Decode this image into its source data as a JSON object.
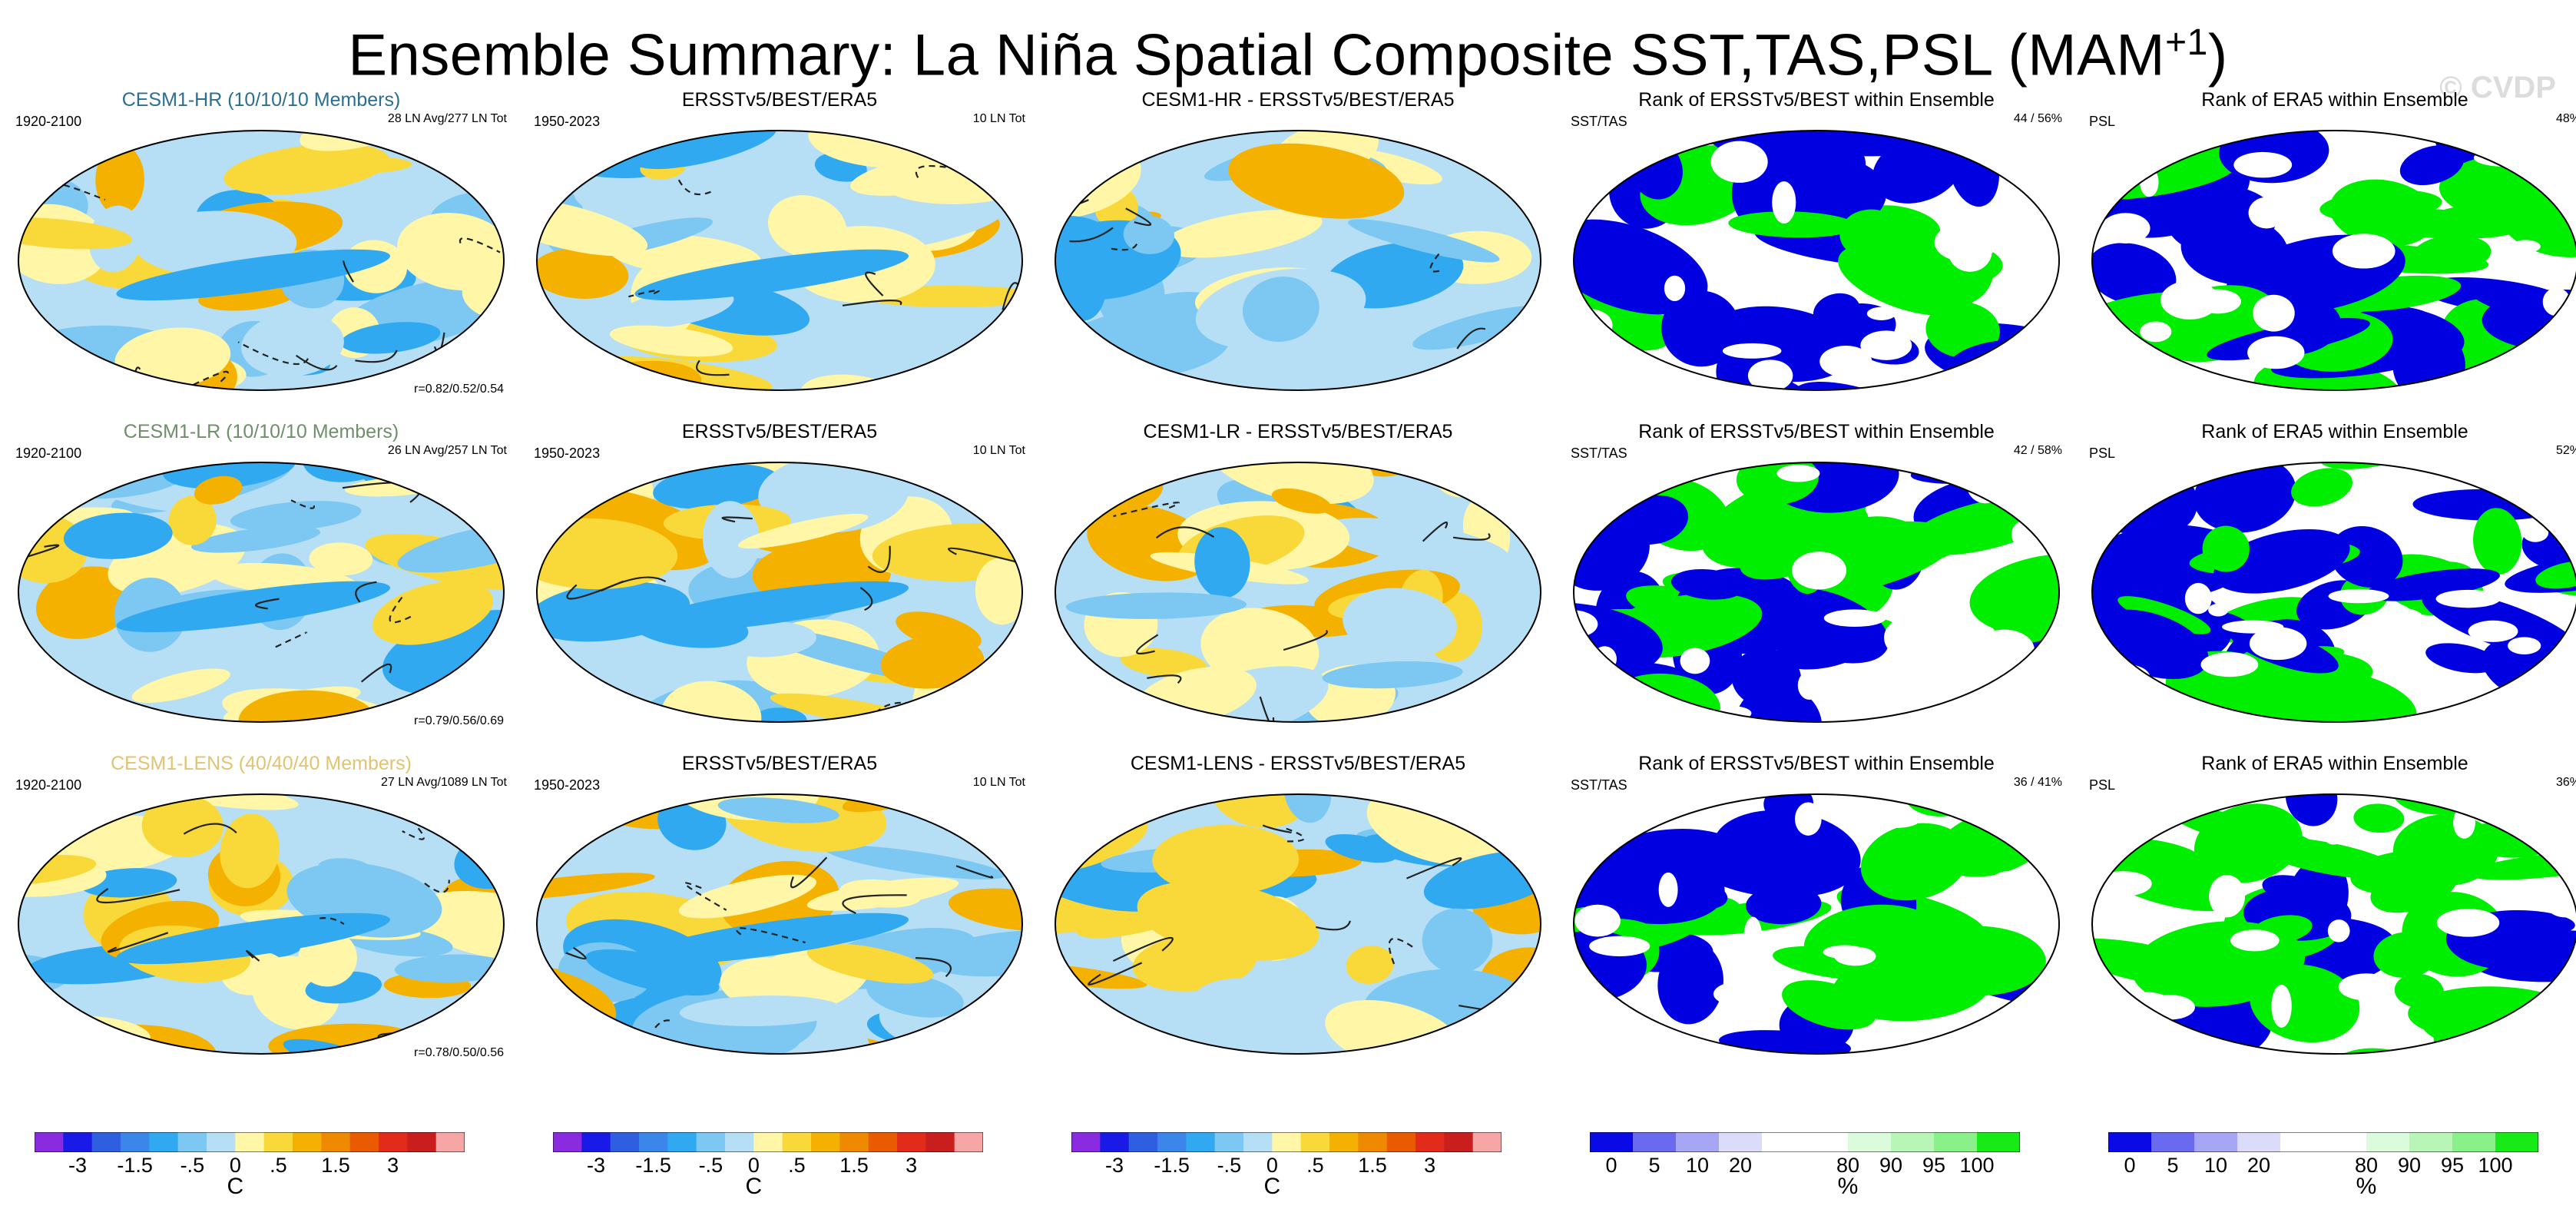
{
  "header": {
    "title": "Ensemble Summary: La Niña Spatial Composite SST,TAS,PSL (MAM",
    "title_sup": "+1",
    "title_end": ")",
    "watermark": "© CVDP"
  },
  "colors": {
    "title_hr": "#2a6f92",
    "title_lr": "#6e8f6a",
    "title_lens": "#e0c472",
    "blue": "#0000e0",
    "green": "#00ef00"
  },
  "panels": [
    {
      "title": "CESM1-HR (10/10/10 Members)",
      "left": "1920-2100",
      "right": "28 LN Avg/277 LN Tot",
      "corr": "r=0.82/0.52/0.54",
      "kind": "model",
      "tcolor": "title_hr"
    },
    {
      "title": "ERSSTv5/BEST/ERA5",
      "left": "1950-2023",
      "right": "10 LN Tot",
      "corr": "",
      "kind": "obs"
    },
    {
      "title": "CESM1-HR - ERSSTv5/BEST/ERA5",
      "left": "",
      "right": "",
      "corr": "",
      "kind": "diff"
    },
    {
      "title": "Rank of ERSSTv5/BEST within Ensemble",
      "left": "SST/TAS",
      "right": "44 /  56%",
      "corr": "",
      "kind": "rank"
    },
    {
      "title": "Rank of ERA5 within Ensemble",
      "left": "PSL",
      "right": "48%",
      "corr": "",
      "kind": "rank"
    },
    {
      "title": "CESM1-LR (10/10/10 Members)",
      "left": "1920-2100",
      "right": "26 LN Avg/257 LN Tot",
      "corr": "r=0.79/0.56/0.69",
      "kind": "model",
      "tcolor": "title_lr"
    },
    {
      "title": "ERSSTv5/BEST/ERA5",
      "left": "1950-2023",
      "right": "10 LN Tot",
      "corr": "",
      "kind": "obs"
    },
    {
      "title": "CESM1-LR - ERSSTv5/BEST/ERA5",
      "left": "",
      "right": "",
      "corr": "",
      "kind": "diff"
    },
    {
      "title": "Rank of ERSSTv5/BEST within Ensemble",
      "left": "SST/TAS",
      "right": "42 /  58%",
      "corr": "",
      "kind": "rank"
    },
    {
      "title": "Rank of ERA5 within Ensemble",
      "left": "PSL",
      "right": "52%",
      "corr": "",
      "kind": "rank"
    },
    {
      "title": "CESM1-LENS (40/40/40 Members)",
      "left": "1920-2100",
      "right": "27 LN Avg/1089 LN Tot",
      "corr": "r=0.78/0.50/0.56",
      "kind": "model",
      "tcolor": "title_lens"
    },
    {
      "title": "ERSSTv5/BEST/ERA5",
      "left": "1950-2023",
      "right": "10 LN Tot",
      "corr": "",
      "kind": "obs"
    },
    {
      "title": "CESM1-LENS - ERSSTv5/BEST/ERA5",
      "left": "",
      "right": "",
      "corr": "",
      "kind": "diff"
    },
    {
      "title": "Rank of ERSSTv5/BEST within Ensemble",
      "left": "SST/TAS",
      "right": "36 /  41%",
      "corr": "",
      "kind": "rank"
    },
    {
      "title": "Rank of ERA5 within Ensemble",
      "left": "PSL",
      "right": "36%",
      "corr": "",
      "kind": "rank"
    }
  ],
  "colorbars": {
    "temp": {
      "colors": [
        "#8a2be2",
        "#1a1ae6",
        "#2f5fe0",
        "#3b86e8",
        "#30a9f0",
        "#7cc8f2",
        "#b6dff5",
        "#fff6a8",
        "#f9d83a",
        "#f4b100",
        "#ef8a00",
        "#ea5a00",
        "#e32b1b",
        "#c81e1e",
        "#f7a6a6"
      ],
      "ticks": [
        "-3",
        "-1.5",
        "-.5",
        "0",
        ".5",
        "1.5",
        "3"
      ],
      "tick_pos": [
        1.5,
        3.5,
        5.5,
        7,
        8.5,
        10.5,
        12.5
      ],
      "unit": "C"
    },
    "rank": {
      "colors": [
        "#0a0ae6",
        "#6a6af0",
        "#a6a6f4",
        "#dcdcfa",
        "#ffffff",
        "#ffffff",
        "#dcfadc",
        "#b8f6b8",
        "#8af08a",
        "#18ea18"
      ],
      "ticks": [
        "0",
        "5",
        "10",
        "20",
        "80",
        "90",
        "95",
        "100"
      ],
      "tick_pos": [
        0.5,
        1.5,
        2.5,
        3.5,
        6,
        7,
        8,
        9
      ],
      "unit": "%"
    }
  }
}
